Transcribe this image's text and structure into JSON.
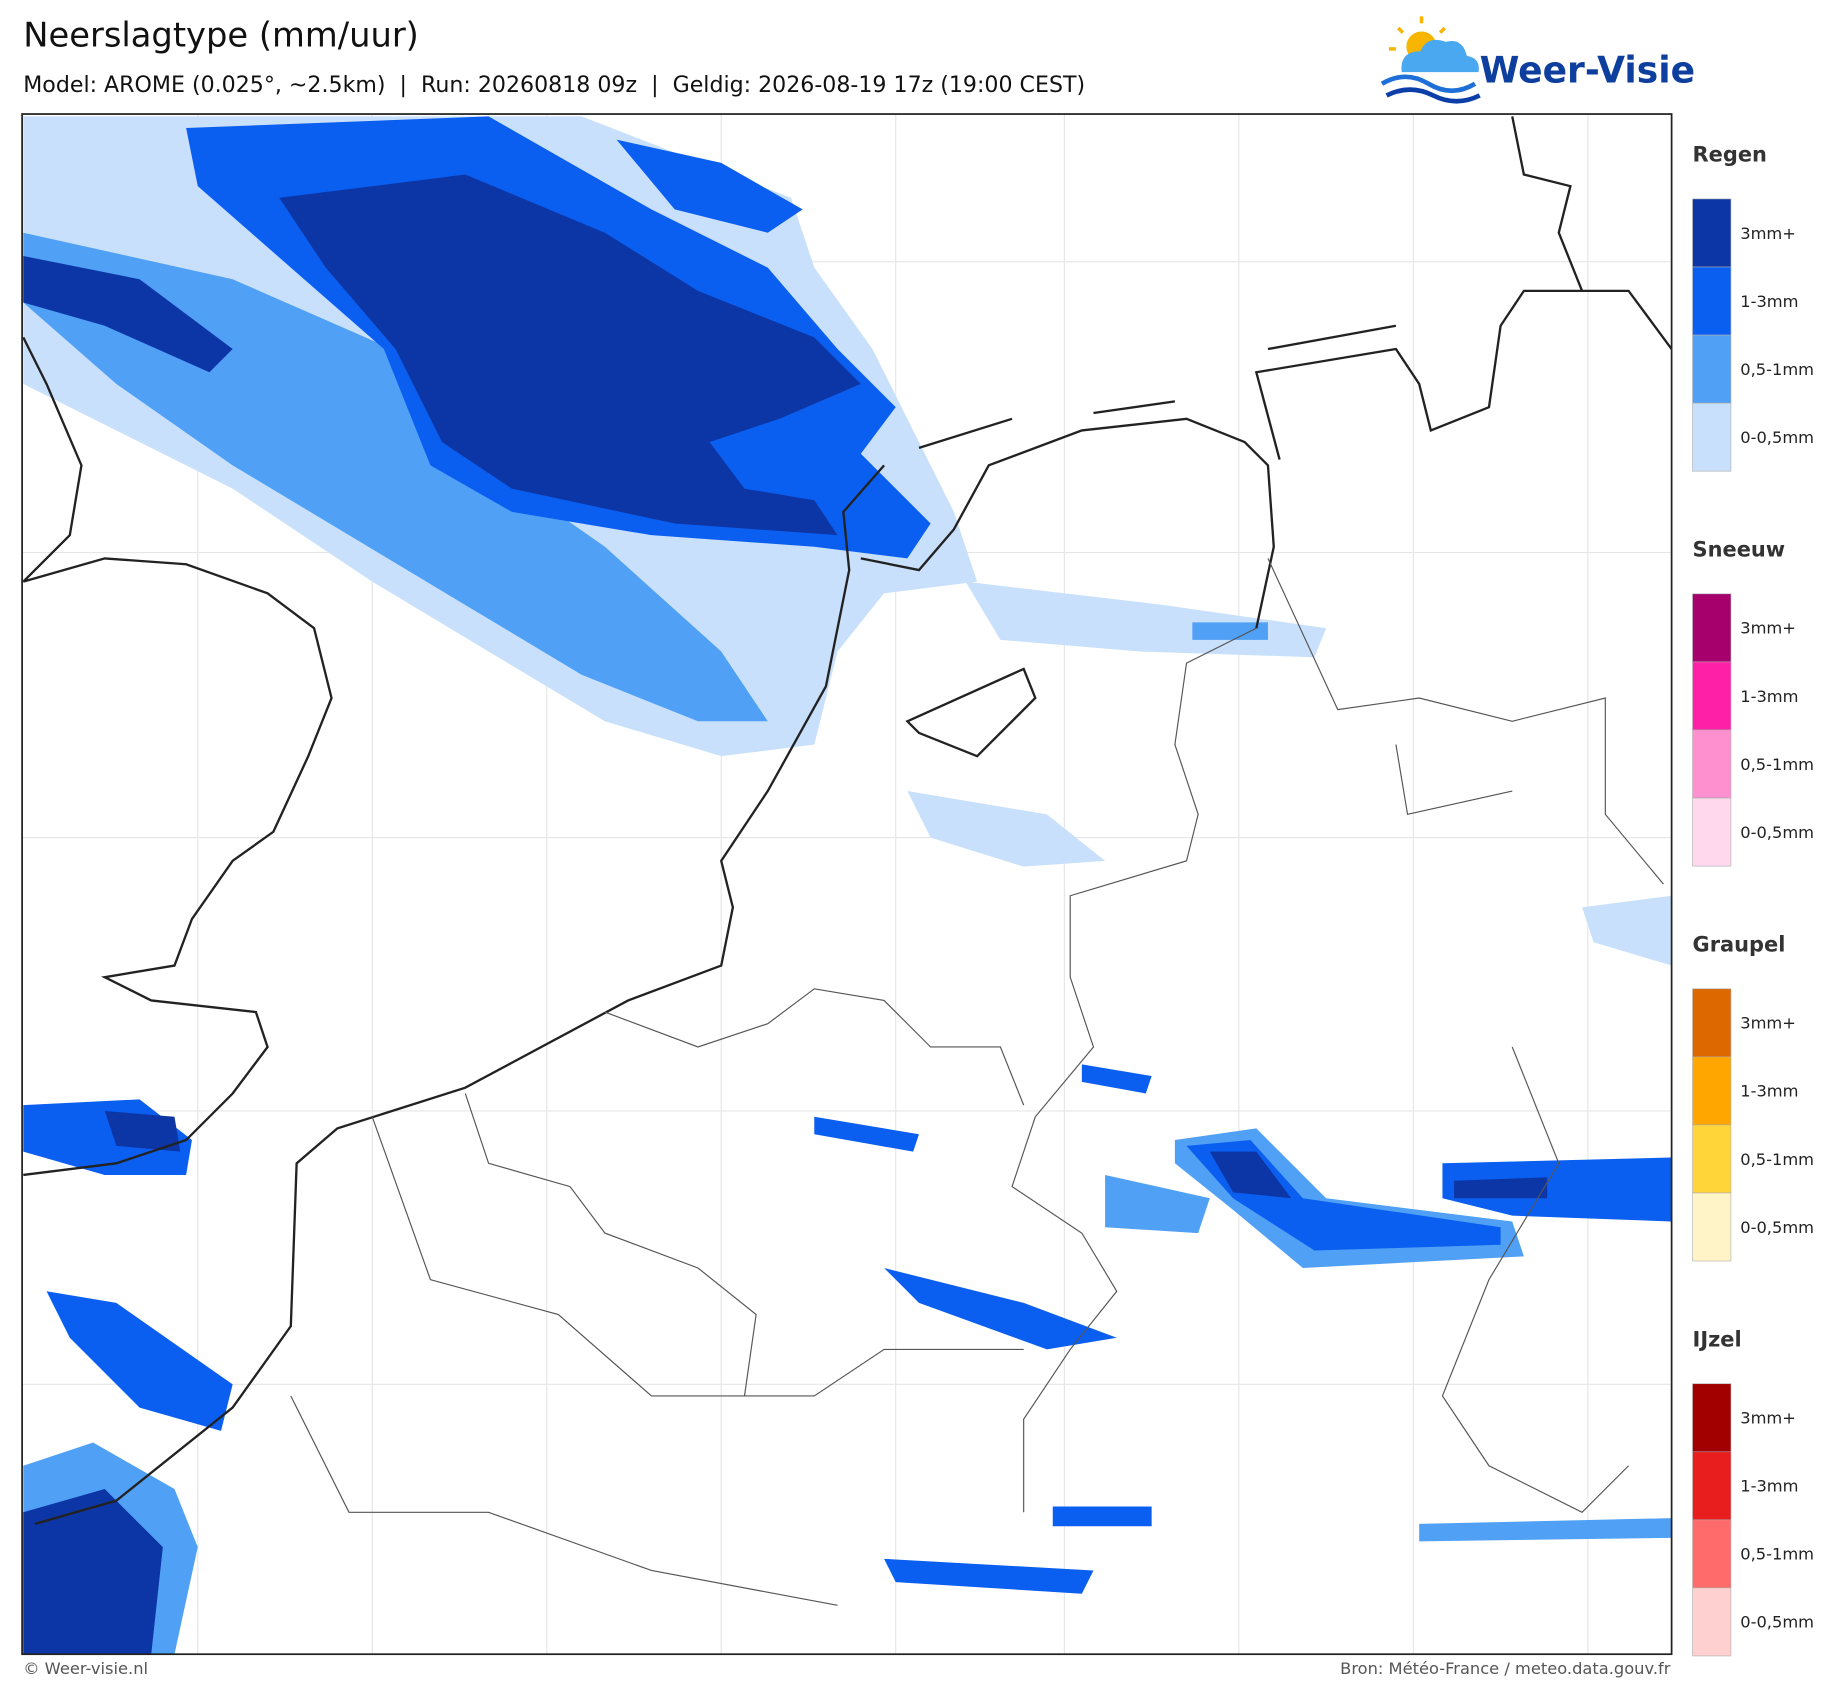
{
  "header": {
    "title": "Neerslagtype (mm/uur)",
    "subtitle": "Model: AROME (0.025°, ~2.5km)  |  Run: 20260818 09z  |  Geldig: 2026-08-19 17z (19:00 CEST)"
  },
  "logo": {
    "text": "Weer-Visie"
  },
  "legend": {
    "groups": [
      {
        "title": "Regen",
        "items": [
          {
            "label": "3mm+",
            "color": "#0c36a6"
          },
          {
            "label": "1-3mm",
            "color": "#0b5ff0"
          },
          {
            "label": "0,5-1mm",
            "color": "#50a0f6"
          },
          {
            "label": "0-0,5mm",
            "color": "#c8e0fb"
          }
        ]
      },
      {
        "title": "Sneeuw",
        "items": [
          {
            "label": "3mm+",
            "color": "#a6006c"
          },
          {
            "label": "1-3mm",
            "color": "#ff20a8"
          },
          {
            "label": "0,5-1mm",
            "color": "#ff90cf"
          },
          {
            "label": "0-0,5mm",
            "color": "#ffd8ee"
          }
        ]
      },
      {
        "title": "Graupel",
        "items": [
          {
            "label": "3mm+",
            "color": "#de6800"
          },
          {
            "label": "1-3mm",
            "color": "#ffa600"
          },
          {
            "label": "0,5-1mm",
            "color": "#ffd53a"
          },
          {
            "label": "0-0,5mm",
            "color": "#fff3c8"
          }
        ]
      },
      {
        "title": "IJzel",
        "items": [
          {
            "label": "3mm+",
            "color": "#a20000"
          },
          {
            "label": "1-3mm",
            "color": "#e81d1d"
          },
          {
            "label": "0,5-1mm",
            "color": "#ff6b6b"
          },
          {
            "label": "0-0,5mm",
            "color": "#ffd0d0"
          }
        ]
      }
    ]
  },
  "footer": {
    "copyright": "© Weer-visie.nl",
    "source": "Bron: Météo-France / meteo.data.gouv.fr"
  }
}
